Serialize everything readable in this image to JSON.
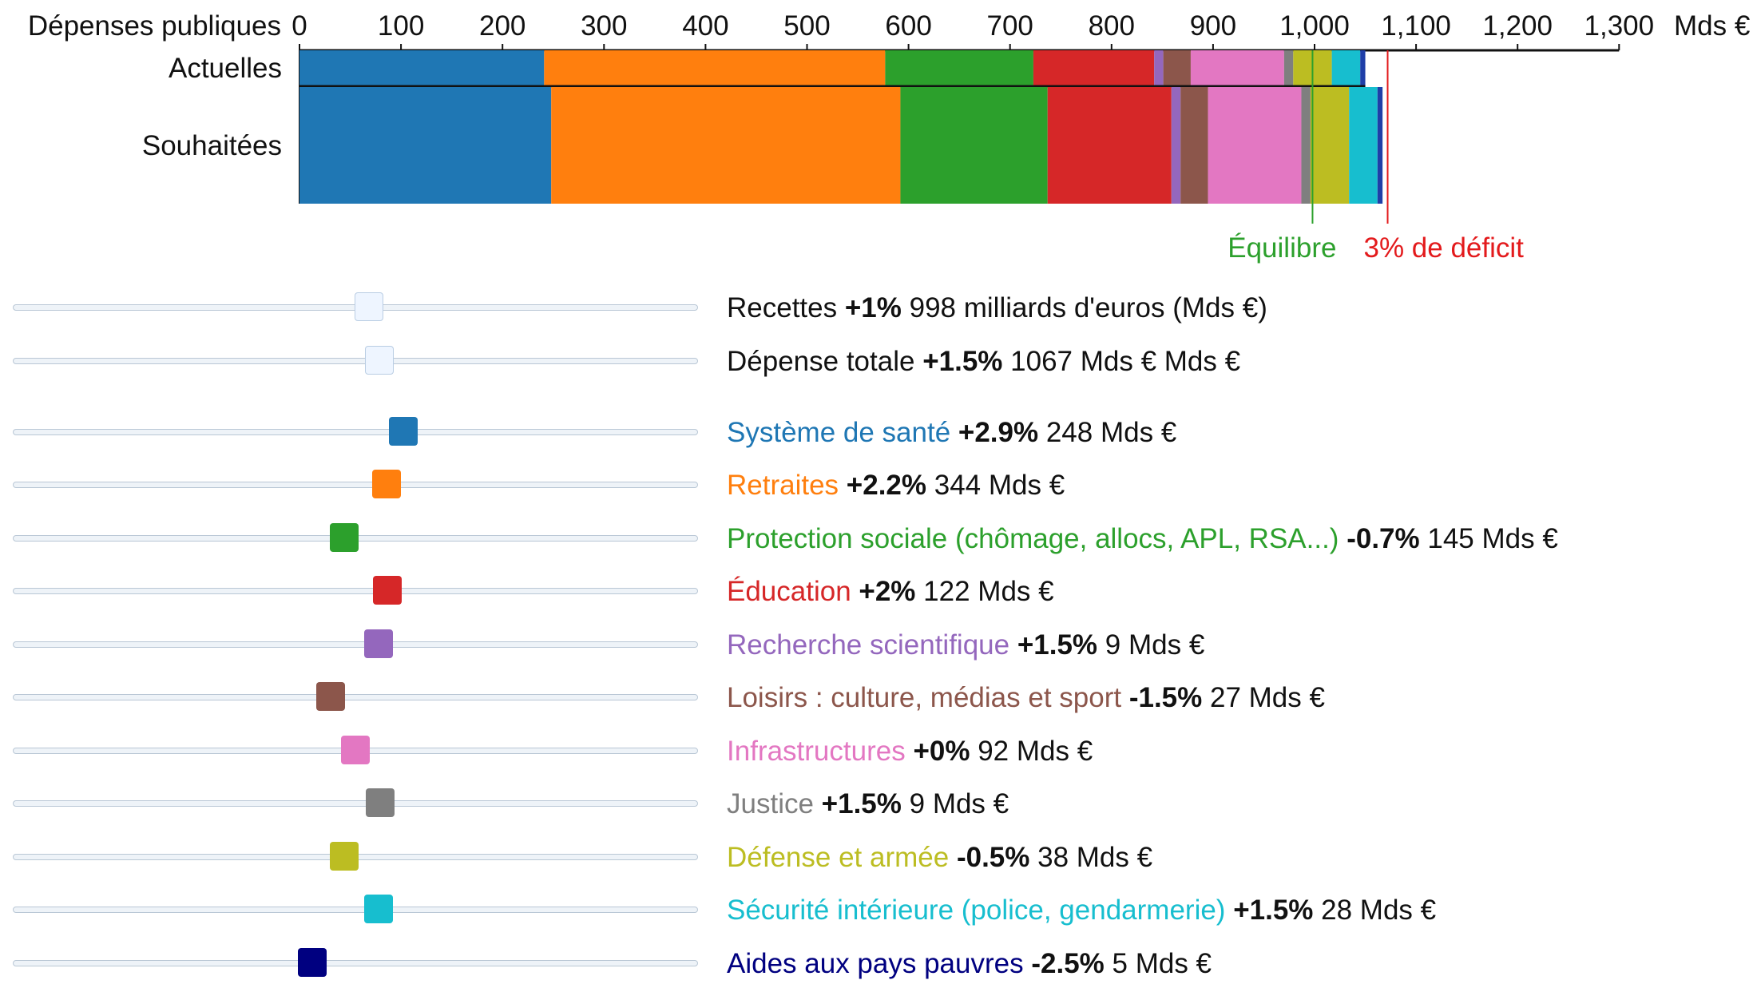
{
  "chart_data": {
    "type": "bar",
    "orientation": "horizontal",
    "stacked": true,
    "title": "Dépenses publiques",
    "unit_label": "Mds €",
    "xlim": [
      0,
      1300
    ],
    "tick_values": [
      0,
      100,
      200,
      300,
      400,
      500,
      600,
      700,
      800,
      900,
      1000,
      1100,
      1200,
      1300
    ],
    "tick_labels": [
      "0",
      "100",
      "200",
      "300",
      "400",
      "500",
      "600",
      "700",
      "800",
      "900",
      "1,000",
      "1,100",
      "1,200",
      "1,300"
    ],
    "categories": [
      "Actuelles",
      "Souhaitées"
    ],
    "series": [
      {
        "name": "Système de santé",
        "color": "#1f77b4",
        "values": [
          241,
          248
        ]
      },
      {
        "name": "Retraites",
        "color": "#ff7f0e",
        "values": [
          336,
          344
        ]
      },
      {
        "name": "Protection sociale (chômage, allocs, APL, RSA...)",
        "color": "#2ca02c",
        "values": [
          146,
          145
        ]
      },
      {
        "name": "Éducation",
        "color": "#d62728",
        "values": [
          119,
          122
        ]
      },
      {
        "name": "Recherche scientifique",
        "color": "#9467bd",
        "values": [
          9,
          9
        ]
      },
      {
        "name": "Loisirs : culture, médias et sport",
        "color": "#8c564b",
        "values": [
          27,
          27
        ]
      },
      {
        "name": "Infrastructures",
        "color": "#e377c2",
        "values": [
          92,
          92
        ]
      },
      {
        "name": "Justice",
        "color": "#7f7f7f",
        "values": [
          9,
          9
        ]
      },
      {
        "name": "Défense et armée",
        "color": "#bcbd22",
        "values": [
          38,
          38
        ]
      },
      {
        "name": "Sécurité intérieure (police, gendarmerie)",
        "color": "#17becf",
        "values": [
          28,
          28
        ]
      },
      {
        "name": "Aides aux pays pauvres",
        "color": "#1f3fa8",
        "values": [
          5,
          5
        ]
      }
    ],
    "reference_lines": [
      {
        "label": "Équilibre",
        "value": 998,
        "color": "#2ca02c"
      },
      {
        "label": "3% de déficit",
        "value": 1072,
        "color": "#e31a1c"
      }
    ]
  },
  "controls": [
    {
      "label": "Recettes",
      "pct": "+1%",
      "amount": "998 milliards d'euros (Mds €)",
      "label_color": "#111111",
      "handle_color": "",
      "level": 0.52
    },
    {
      "label": "Dépense totale",
      "pct": "+1.5%",
      "amount": "1067 Mds € Mds €",
      "label_color": "#111111",
      "handle_color": "",
      "level": 0.535
    },
    {
      "label": "Système de santé",
      "pct": "+2.9%",
      "amount": "248 Mds €",
      "label_color": "#1f77b4",
      "handle_color": "#1f77b4",
      "level": 0.57
    },
    {
      "label": "Retraites",
      "pct": "+2.2%",
      "amount": "344 Mds €",
      "label_color": "#ff7f0e",
      "handle_color": "#ff7f0e",
      "level": 0.545
    },
    {
      "label": "Protection sociale (chômage, allocs, APL, RSA...)",
      "pct": "-0.7%",
      "amount": "145 Mds €",
      "label_color": "#2ca02c",
      "handle_color": "#2ca02c",
      "level": 0.484
    },
    {
      "label": "Éducation",
      "pct": "+2%",
      "amount": "122 Mds €",
      "label_color": "#d62728",
      "handle_color": "#d62728",
      "level": 0.547
    },
    {
      "label": "Recherche scientifique",
      "pct": "+1.5%",
      "amount": "9 Mds €",
      "label_color": "#9467bd",
      "handle_color": "#9467bd",
      "level": 0.534
    },
    {
      "label": "Loisirs : culture, médias et sport",
      "pct": "-1.5%",
      "amount": "27 Mds €",
      "label_color": "#8c564b",
      "handle_color": "#8c564b",
      "level": 0.464
    },
    {
      "label": "Infrastructures",
      "pct": "+0%",
      "amount": "92 Mds €",
      "label_color": "#e377c2",
      "handle_color": "#e377c2",
      "level": 0.5
    },
    {
      "label": "Justice",
      "pct": "+1.5%",
      "amount": "9 Mds €",
      "label_color": "#7f7f7f",
      "handle_color": "#7f7f7f",
      "level": 0.536
    },
    {
      "label": "Défense et armée",
      "pct": "-0.5%",
      "amount": "38 Mds €",
      "label_color": "#bcbd22",
      "handle_color": "#bcbd22",
      "level": 0.484
    },
    {
      "label": "Sécurité intérieure (police, gendarmerie)",
      "pct": "+1.5%",
      "amount": "28 Mds €",
      "label_color": "#17becf",
      "handle_color": "#17becf",
      "level": 0.534
    },
    {
      "label": "Aides aux pays pauvres",
      "pct": "-2.5%",
      "amount": "5 Mds €",
      "label_color": "#000080",
      "handle_color": "#000080",
      "level": 0.437
    }
  ]
}
